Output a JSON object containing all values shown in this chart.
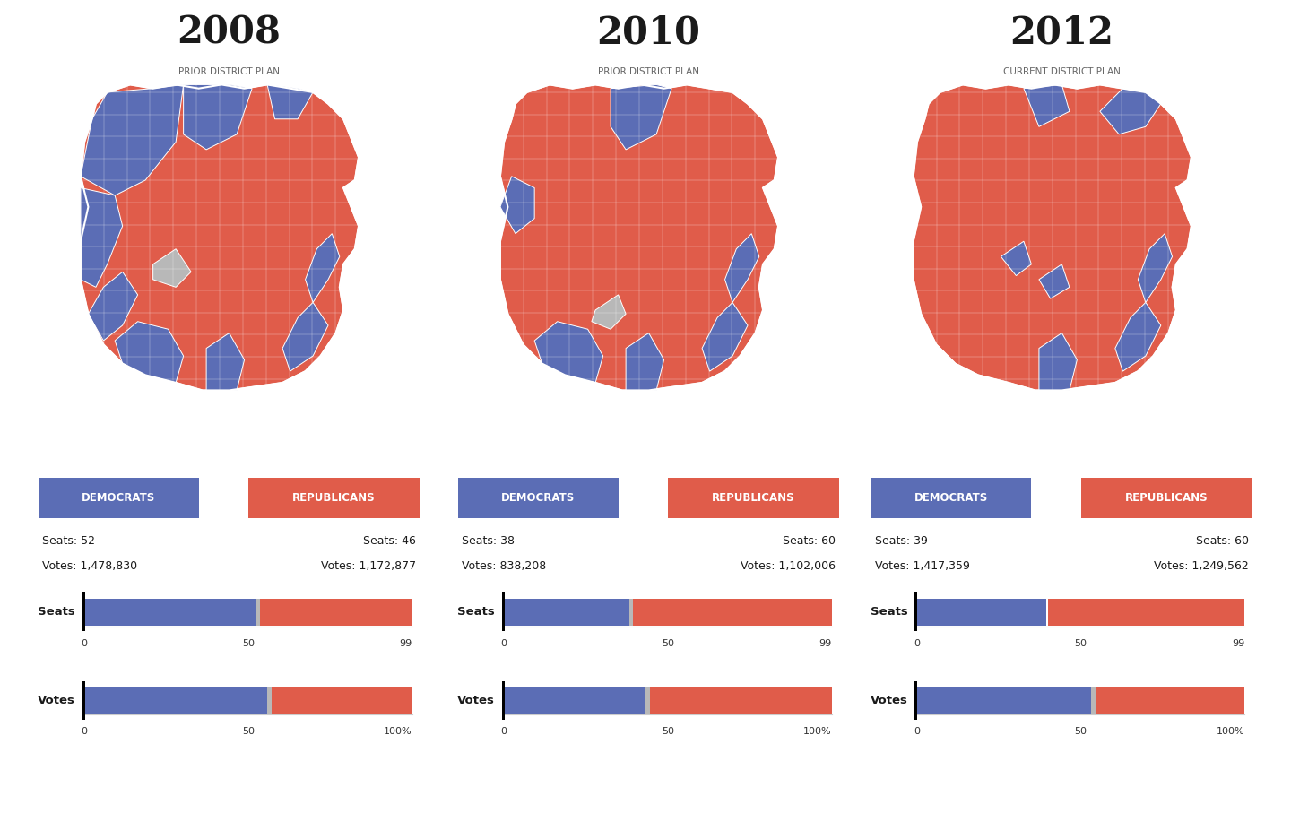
{
  "background": "#ffffff",
  "dem_color": "#5b6db5",
  "rep_color": "#e05c4a",
  "gray_color": "#b8b8b8",
  "panels": [
    {
      "year": "2008",
      "subtitle": "PRIOR DISTRICT PLAN",
      "dem_seats": 52,
      "rep_seats": 46,
      "other_seats": 1,
      "total_seats": 99,
      "dem_votes": 1478830,
      "rep_votes": 1172877,
      "year_idx": 0
    },
    {
      "year": "2010",
      "subtitle": "PRIOR DISTRICT PLAN",
      "dem_seats": 38,
      "rep_seats": 60,
      "other_seats": 1,
      "total_seats": 99,
      "dem_votes": 838208,
      "rep_votes": 1102006,
      "year_idx": 1
    },
    {
      "year": "2012",
      "subtitle": "CURRENT DISTRICT PLAN",
      "dem_seats": 39,
      "rep_seats": 60,
      "other_seats": 0,
      "total_seats": 99,
      "dem_votes": 1417359,
      "rep_votes": 1249562,
      "year_idx": 2
    }
  ],
  "year_fontsize": 30,
  "subtitle_fontsize": 7.5,
  "label_fontsize": 8.5,
  "text_fontsize": 9,
  "bar_label_fontsize": 9.5,
  "tick_fontsize": 8
}
